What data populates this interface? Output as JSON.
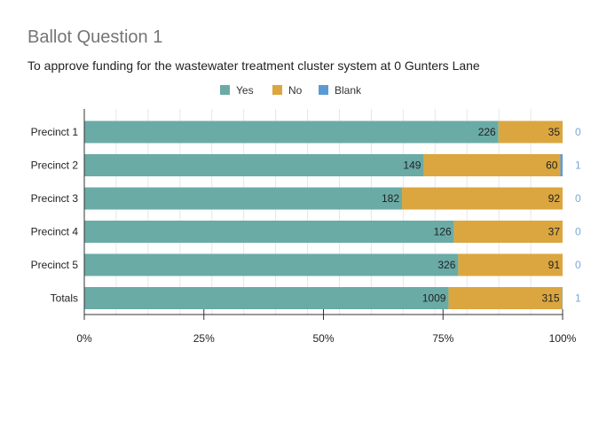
{
  "chart_data": {
    "type": "bar",
    "orientation": "horizontal",
    "stacked": "percent",
    "title": "Ballot Question 1",
    "subtitle": "To approve funding for the wastewater treatment cluster system at 0 Gunters Lane",
    "categories": [
      "Precinct 1",
      "Precinct 2",
      "Precinct 3",
      "Precinct 4",
      "Precinct 5",
      "Totals"
    ],
    "series": [
      {
        "name": "Yes",
        "color": "#6aaba6",
        "values": [
          226,
          149,
          182,
          126,
          326,
          1009
        ]
      },
      {
        "name": "No",
        "color": "#dba63f",
        "values": [
          35,
          60,
          92,
          37,
          91,
          315
        ]
      },
      {
        "name": "Blank",
        "color": "#5b9bd5",
        "values": [
          0,
          1,
          0,
          0,
          0,
          1
        ]
      }
    ],
    "xticks": [
      "0%",
      "25%",
      "50%",
      "75%",
      "100%"
    ],
    "xlim": [
      0,
      100
    ],
    "legend": "top",
    "grid": true
  }
}
